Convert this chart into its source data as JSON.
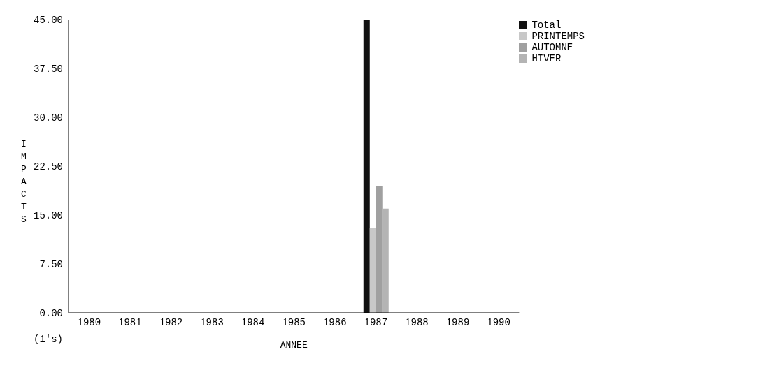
{
  "chart_data": {
    "type": "bar",
    "xlabel": "ANNEE",
    "ylabel": "IMPACTS",
    "categories": [
      "1980",
      "1981",
      "1982",
      "1983",
      "1984",
      "1985",
      "1986",
      "1987",
      "1988",
      "1989",
      "1990"
    ],
    "series": [
      {
        "name": "Total",
        "color": "#111111",
        "values": [
          0,
          0,
          0,
          0,
          0,
          0,
          0,
          45,
          0,
          0,
          0
        ]
      },
      {
        "name": "PRINTEMPS",
        "color": "#c8c8c8",
        "values": [
          0,
          0,
          0,
          0,
          0,
          0,
          0,
          13,
          0,
          0,
          0
        ]
      },
      {
        "name": "AUTOMNE",
        "color": "#a0a0a0",
        "values": [
          0,
          0,
          0,
          0,
          0,
          0,
          0,
          19.5,
          0,
          0,
          0
        ]
      },
      {
        "name": "HIVER",
        "color": "#b4b4b4",
        "values": [
          0,
          0,
          0,
          0,
          0,
          0,
          0,
          16,
          0,
          0,
          0
        ]
      }
    ],
    "ylim": [
      0,
      45
    ],
    "yticks": [
      {
        "value": 0,
        "label": "0.00"
      },
      {
        "value": 7.5,
        "label": "7.50"
      },
      {
        "value": 15,
        "label": "15.00"
      },
      {
        "value": 22.5,
        "label": "22.50"
      },
      {
        "value": 30,
        "label": "30.00"
      },
      {
        "value": 37.5,
        "label": "37.50"
      },
      {
        "value": 45,
        "label": "45.00"
      }
    ],
    "annotations": [
      "(1's)"
    ],
    "grid": false,
    "legend": "top right"
  }
}
